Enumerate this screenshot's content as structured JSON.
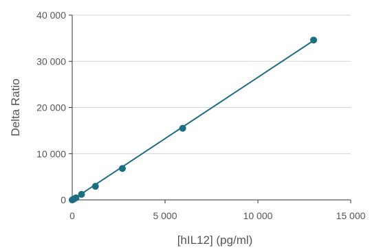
{
  "chart_data": {
    "type": "scatter",
    "title": "",
    "xlabel": "[hIL12] (pg/ml)",
    "ylabel": "Delta Ratio",
    "xlim": [
      0,
      15000
    ],
    "ylim": [
      0,
      40000
    ],
    "xticks": [
      0,
      5000,
      10000,
      15000
    ],
    "yticks": [
      0,
      10000,
      20000,
      30000,
      40000
    ],
    "xtick_labels": [
      "0",
      "5 000",
      "10 000",
      "15 000"
    ],
    "ytick_labels": [
      "0",
      "10 000",
      "20 000",
      "30 000",
      "40 000"
    ],
    "grid": "horizontal",
    "legend": "none",
    "series": [
      {
        "color": "#1a7080",
        "points": [
          {
            "x": 0,
            "y": 0
          },
          {
            "x": 30,
            "y": 60
          },
          {
            "x": 80,
            "y": 180
          },
          {
            "x": 200,
            "y": 450
          },
          {
            "x": 500,
            "y": 1200
          },
          {
            "x": 1250,
            "y": 2950
          },
          {
            "x": 2700,
            "y": 6800
          },
          {
            "x": 5950,
            "y": 15500
          },
          {
            "x": 13000,
            "y": 34600
          }
        ],
        "fit_line": {
          "from": [
            0,
            0
          ],
          "to": [
            13000,
            34500
          ]
        }
      }
    ]
  }
}
